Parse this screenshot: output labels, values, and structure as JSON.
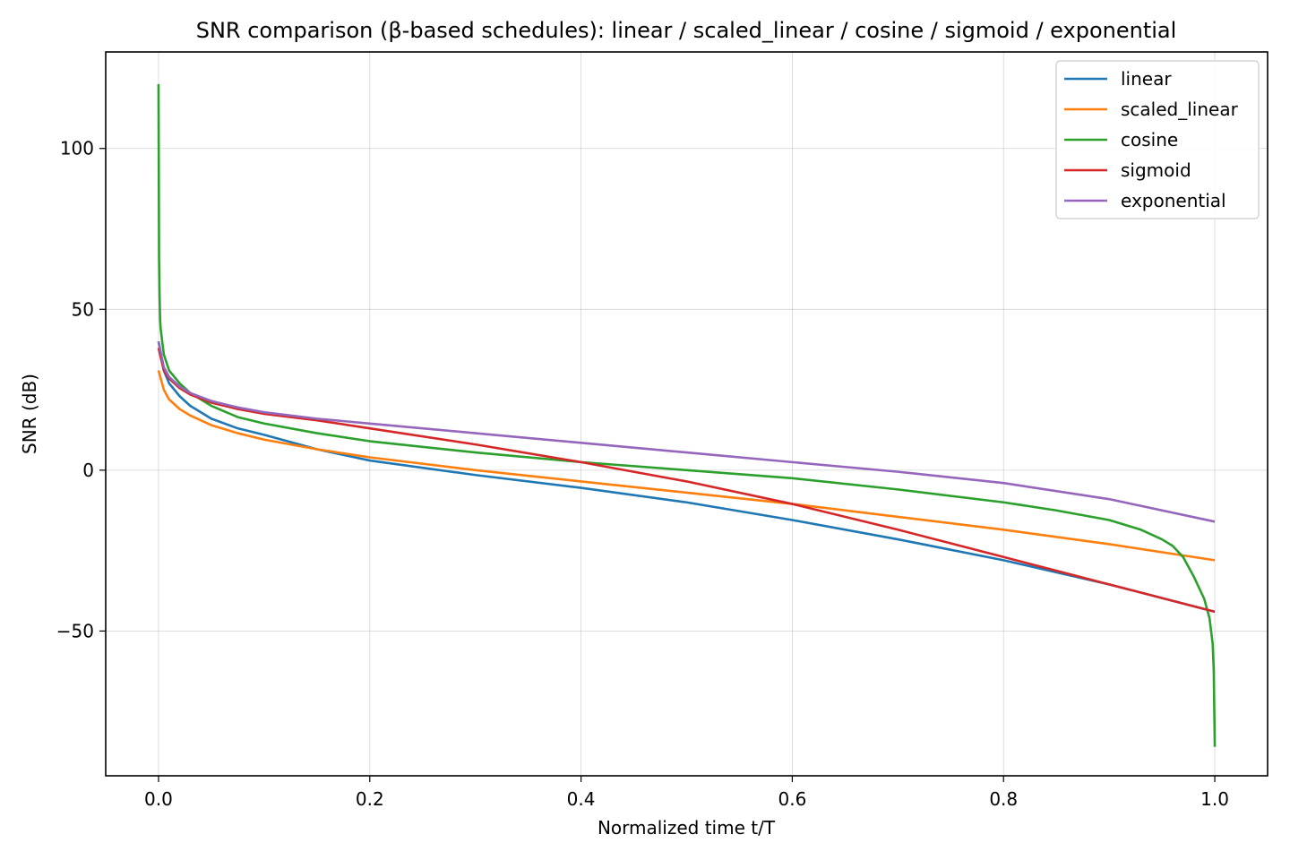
{
  "chart_data": {
    "type": "line",
    "title": "SNR comparison (β-based schedules): linear / scaled_linear / cosine / sigmoid / exponential",
    "xlabel": "Normalized time t/T",
    "ylabel": "SNR (dB)",
    "xlim": [
      -0.05,
      1.05
    ],
    "ylim": [
      -95,
      130
    ],
    "xticks": [
      0.0,
      0.2,
      0.4,
      0.6,
      0.8,
      1.0
    ],
    "xtick_labels": [
      "0.0",
      "0.2",
      "0.4",
      "0.6",
      "0.8",
      "1.0"
    ],
    "yticks": [
      -50,
      0,
      50,
      100
    ],
    "ytick_labels": [
      "−50",
      "0",
      "50",
      "100"
    ],
    "grid": true,
    "legend_position": "top-right",
    "series": [
      {
        "name": "linear",
        "color": "#1f77b4",
        "x": [
          0.0,
          0.005,
          0.01,
          0.02,
          0.03,
          0.05,
          0.075,
          0.1,
          0.15,
          0.2,
          0.3,
          0.4,
          0.5,
          0.6,
          0.7,
          0.8,
          0.9,
          1.0
        ],
        "y": [
          40,
          31,
          27,
          23,
          20,
          16,
          13,
          11,
          6.5,
          3,
          -1.5,
          -5.5,
          -10,
          -15.5,
          -21.5,
          -28,
          -35.5,
          -44
        ]
      },
      {
        "name": "scaled_linear",
        "color": "#ff7f0e",
        "x": [
          0.0,
          0.005,
          0.01,
          0.02,
          0.03,
          0.05,
          0.075,
          0.1,
          0.15,
          0.2,
          0.3,
          0.4,
          0.5,
          0.6,
          0.7,
          0.8,
          0.9,
          1.0
        ],
        "y": [
          31,
          25,
          22,
          19,
          17,
          14,
          11.5,
          9.5,
          6.5,
          4,
          0,
          -3.5,
          -7,
          -10.5,
          -14.5,
          -18.5,
          -23,
          -28
        ]
      },
      {
        "name": "cosine",
        "color": "#2ca02c",
        "x": [
          0.0,
          0.0005,
          0.001,
          0.0015,
          0.002,
          0.005,
          0.01,
          0.02,
          0.03,
          0.05,
          0.075,
          0.1,
          0.15,
          0.2,
          0.3,
          0.4,
          0.5,
          0.6,
          0.7,
          0.8,
          0.85,
          0.9,
          0.93,
          0.95,
          0.96,
          0.97,
          0.98,
          0.99,
          0.995,
          0.998,
          0.999,
          1.0
        ],
        "y": [
          120,
          66,
          54,
          47,
          44,
          36,
          31,
          27,
          24,
          20,
          16.5,
          14.5,
          11.5,
          9,
          5.5,
          2.5,
          0,
          -2.5,
          -6,
          -10,
          -12.5,
          -15.5,
          -18.5,
          -21.5,
          -23.5,
          -27,
          -33,
          -40,
          -46,
          -54,
          -62,
          -86
        ]
      },
      {
        "name": "sigmoid",
        "color": "#d62728",
        "x": [
          0.0,
          0.005,
          0.01,
          0.02,
          0.03,
          0.05,
          0.075,
          0.1,
          0.15,
          0.2,
          0.3,
          0.4,
          0.5,
          0.6,
          0.7,
          0.8,
          0.9,
          1.0
        ],
        "y": [
          38,
          31,
          28.5,
          25.5,
          23.5,
          21,
          19,
          17.5,
          15.5,
          13,
          8,
          2.5,
          -3.5,
          -10.5,
          -18.5,
          -27,
          -35.5,
          -44
        ]
      },
      {
        "name": "exponential",
        "color": "#9467bd",
        "x": [
          0.0,
          0.005,
          0.01,
          0.02,
          0.03,
          0.05,
          0.075,
          0.1,
          0.15,
          0.2,
          0.3,
          0.4,
          0.5,
          0.6,
          0.7,
          0.8,
          0.9,
          1.0
        ],
        "y": [
          40,
          32,
          29,
          26,
          24,
          21.5,
          19.5,
          18,
          16,
          14.5,
          11.5,
          8.5,
          5.5,
          2.5,
          -0.5,
          -4,
          -9,
          -16
        ]
      }
    ]
  }
}
